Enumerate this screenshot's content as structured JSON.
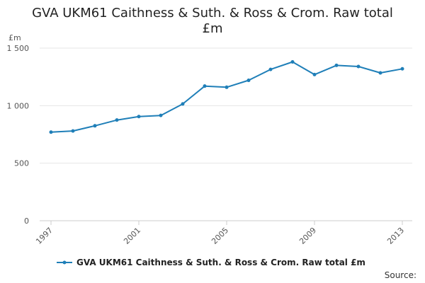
{
  "chart_data": {
    "type": "line",
    "title": "GVA UKM61 Caithness & Suth. & Ross & Crom. Raw total £m",
    "ylabel": "£m",
    "xlabel": "",
    "ylim": [
      0,
      1500
    ],
    "yticks": [
      0,
      500,
      1000,
      1500
    ],
    "ytick_labels": [
      "0",
      "500",
      "1 000",
      "1 500"
    ],
    "xlim": [
      1997,
      2013
    ],
    "xticks": [
      1997,
      2001,
      2005,
      2009,
      2013
    ],
    "xtick_labels": [
      "1997",
      "2001",
      "2005",
      "2009",
      "2013"
    ],
    "grid": true,
    "legend_position": "bottom",
    "series": [
      {
        "name": "GVA UKM61 Caithness & Suth. & Ross & Crom. Raw total £m",
        "color": "#1f7fb8",
        "x": [
          1997,
          1998,
          1999,
          2000,
          2001,
          2002,
          2003,
          2004,
          2005,
          2006,
          2007,
          2008,
          2009,
          2010,
          2011,
          2012,
          2013
        ],
        "values": [
          770,
          780,
          825,
          875,
          905,
          915,
          1015,
          1170,
          1160,
          1220,
          1315,
          1380,
          1270,
          1350,
          1340,
          1285,
          1320
        ]
      }
    ]
  },
  "source_label": "Source:",
  "colors": {
    "series": "#1f7fb8",
    "grid": "#e6e6e6",
    "axis": "#cccccc",
    "text": "#555555"
  }
}
